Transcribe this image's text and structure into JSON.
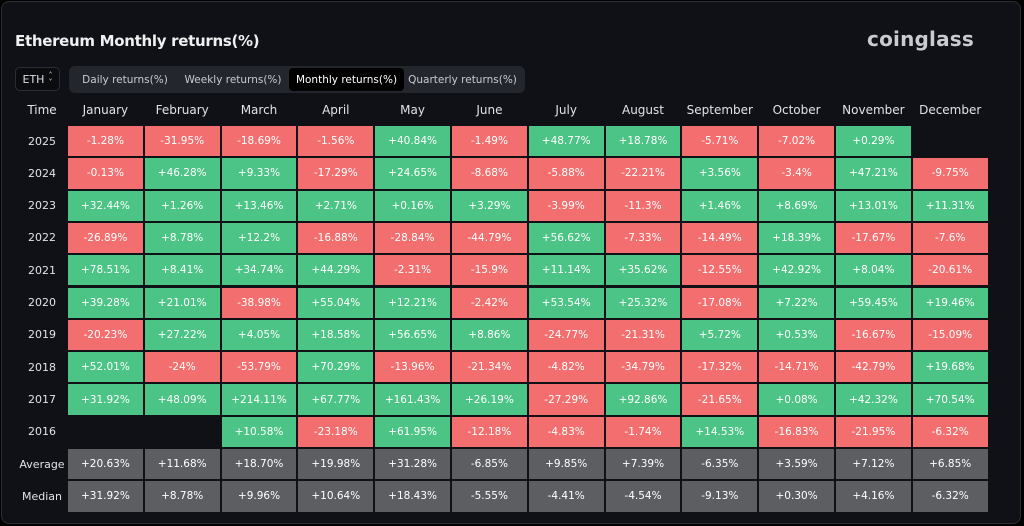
{
  "title": "Ethereum Monthly returns(%)",
  "brand": "coinglass",
  "asset_selector": {
    "value": "ETH",
    "icon": "chevron-updown-icon"
  },
  "tabs": [
    {
      "label": "Daily returns(%)",
      "active": false
    },
    {
      "label": "Weekly returns(%)",
      "active": false
    },
    {
      "label": "Monthly returns(%)",
      "active": true
    },
    {
      "label": "Quarterly returns(%)",
      "active": false
    }
  ],
  "colors": {
    "positive": "#4cc486",
    "negative": "#f36f6f",
    "summary": "#5d5e62",
    "background": "#0f1117"
  },
  "chart_data": {
    "type": "table",
    "time_header": "Time",
    "columns": [
      "January",
      "February",
      "March",
      "April",
      "May",
      "June",
      "July",
      "August",
      "September",
      "October",
      "November",
      "December"
    ],
    "rows": [
      {
        "label": "2025",
        "values": [
          "-1.28%",
          "-31.95%",
          "-18.69%",
          "-1.56%",
          "+40.84%",
          "-1.49%",
          "+48.77%",
          "+18.78%",
          "-5.71%",
          "-7.02%",
          "+0.29%",
          ""
        ]
      },
      {
        "label": "2024",
        "values": [
          "-0.13%",
          "+46.28%",
          "+9.33%",
          "-17.29%",
          "+24.65%",
          "-8.68%",
          "-5.88%",
          "-22.21%",
          "+3.56%",
          "-3.4%",
          "+47.21%",
          "-9.75%"
        ]
      },
      {
        "label": "2023",
        "values": [
          "+32.44%",
          "+1.26%",
          "+13.46%",
          "+2.71%",
          "+0.16%",
          "+3.29%",
          "-3.99%",
          "-11.3%",
          "+1.46%",
          "+8.69%",
          "+13.01%",
          "+11.31%"
        ]
      },
      {
        "label": "2022",
        "values": [
          "-26.89%",
          "+8.78%",
          "+12.2%",
          "-16.88%",
          "-28.84%",
          "-44.79%",
          "+56.62%",
          "-7.33%",
          "-14.49%",
          "+18.39%",
          "-17.67%",
          "-7.6%"
        ]
      },
      {
        "label": "2021",
        "values": [
          "+78.51%",
          "+8.41%",
          "+34.74%",
          "+44.29%",
          "-2.31%",
          "-15.9%",
          "+11.14%",
          "+35.62%",
          "-12.55%",
          "+42.92%",
          "+8.04%",
          "-20.61%"
        ]
      },
      {
        "label": "2020",
        "values": [
          "+39.28%",
          "+21.01%",
          "-38.98%",
          "+55.04%",
          "+12.21%",
          "-2.42%",
          "+53.54%",
          "+25.32%",
          "-17.08%",
          "+7.22%",
          "+59.45%",
          "+19.46%"
        ]
      },
      {
        "label": "2019",
        "values": [
          "-20.23%",
          "+27.22%",
          "+4.05%",
          "+18.58%",
          "+56.65%",
          "+8.86%",
          "-24.77%",
          "-21.31%",
          "+5.72%",
          "+0.53%",
          "-16.67%",
          "-15.09%"
        ]
      },
      {
        "label": "2018",
        "values": [
          "+52.01%",
          "-24%",
          "-53.79%",
          "+70.29%",
          "-13.96%",
          "-21.34%",
          "-4.82%",
          "-34.79%",
          "-17.32%",
          "-14.71%",
          "-42.79%",
          "+19.68%"
        ]
      },
      {
        "label": "2017",
        "values": [
          "+31.92%",
          "+48.09%",
          "+214.11%",
          "+67.77%",
          "+161.43%",
          "+26.19%",
          "-27.29%",
          "+92.86%",
          "-21.65%",
          "+0.08%",
          "+42.32%",
          "+70.54%"
        ]
      },
      {
        "label": "2016",
        "values": [
          "",
          "",
          "+10.58%",
          "-23.18%",
          "+61.95%",
          "-12.18%",
          "-4.83%",
          "-1.74%",
          "+14.53%",
          "-16.83%",
          "-21.95%",
          "-6.32%"
        ]
      }
    ],
    "summary": [
      {
        "label": "Average",
        "values": [
          "+20.63%",
          "+11.68%",
          "+18.70%",
          "+19.98%",
          "+31.28%",
          "-6.85%",
          "+9.85%",
          "+7.39%",
          "-6.35%",
          "+3.59%",
          "+7.12%",
          "+6.85%"
        ]
      },
      {
        "label": "Median",
        "values": [
          "+31.92%",
          "+8.78%",
          "+9.96%",
          "+10.64%",
          "+18.43%",
          "-5.55%",
          "-4.41%",
          "-4.54%",
          "-9.13%",
          "+0.30%",
          "+4.16%",
          "-6.32%"
        ]
      }
    ]
  }
}
